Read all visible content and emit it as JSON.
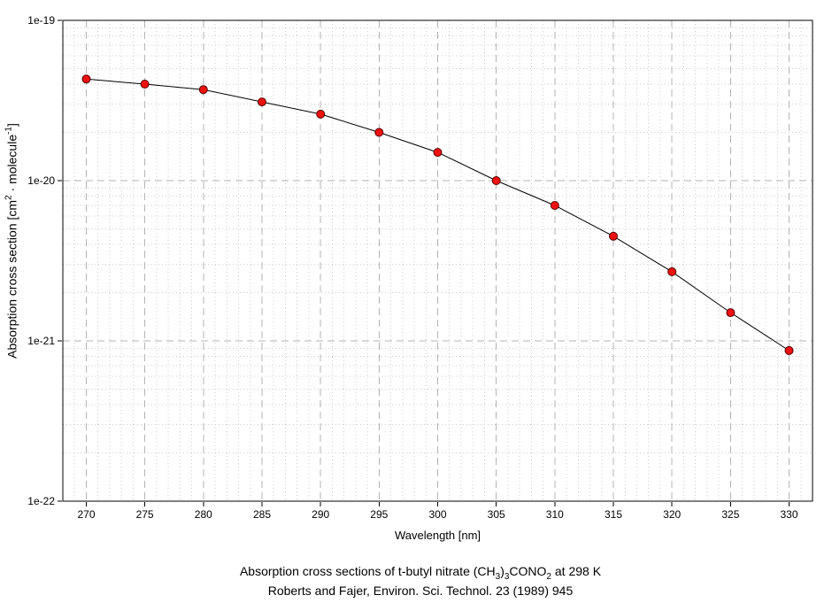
{
  "page": {
    "background": "#ffffff"
  },
  "chart_data": {
    "type": "line",
    "title": "Absorption cross sections of t-butyl nitrate (CH3)3CONO2 at 298 K",
    "title_parts": {
      "pre": "Absorption cross sections of t-butyl nitrate (CH",
      "sub1": "3",
      "mid1": ")",
      "sub2": "3",
      "mid2": "CONO",
      "sub3": "2",
      "post": " at 298 K"
    },
    "subtitle": "Roberts and Fajer, Environ. Sci. Technol. 23 (1989) 945",
    "xlabel": "Wavelength [nm]",
    "ylabel": "Absorption cross section [cm2 · molecule-1]",
    "ylabel_parts": {
      "pre": "Absorption cross section [cm",
      "sup1": "2",
      "mid": " · molecule",
      "sup2": "-1",
      "post": "]"
    },
    "x": [
      270,
      275,
      280,
      285,
      290,
      295,
      300,
      305,
      310,
      315,
      320,
      325,
      330
    ],
    "values": [
      4.3e-20,
      4e-20,
      3.7e-20,
      3.1e-20,
      2.6e-20,
      2e-20,
      1.5e-20,
      1e-20,
      7e-21,
      4.5e-21,
      2.7e-21,
      1.5e-21,
      8.7e-22
    ],
    "xlim": [
      268,
      332
    ],
    "ylim": [
      1e-22,
      1e-19
    ],
    "xscale": "linear",
    "yscale": "log",
    "x_ticks": [
      270,
      275,
      280,
      285,
      290,
      295,
      300,
      305,
      310,
      315,
      320,
      325,
      330
    ],
    "y_ticks": [
      {
        "value": 1e-19,
        "label": "1e-19"
      },
      {
        "value": 1e-20,
        "label": "1e-20"
      },
      {
        "value": 1e-21,
        "label": "1e-21"
      },
      {
        "value": 1e-22,
        "label": "1e-22"
      }
    ],
    "grid": {
      "on": true,
      "major_color": "#b3b3b3",
      "minor_color": "#cccccc",
      "major_dash": "8 5",
      "minor_dash": "1 3"
    },
    "axis_color": "#000000",
    "line_color": "#000000",
    "marker": {
      "fill": "#ee1111",
      "stroke": "#550000",
      "radius": 4.5
    },
    "legend": "none"
  }
}
